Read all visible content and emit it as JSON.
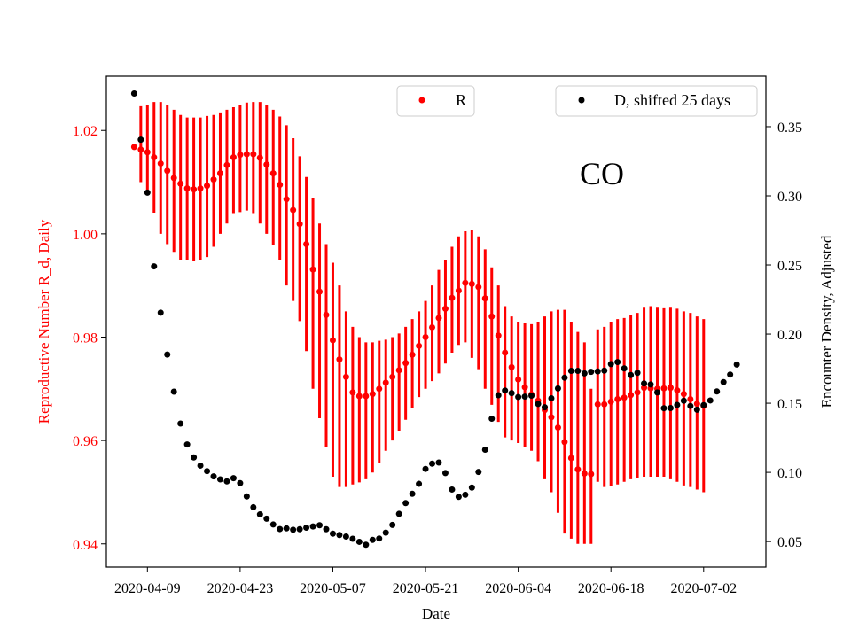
{
  "chart_data": {
    "type": "scatter",
    "annotation": "CO",
    "xlabel": "Date",
    "ylabel_left": "Reproductive Number R_d, Daily",
    "ylabel_right": "Encounter Density, Adjusted",
    "colors": {
      "left_axis": "#ff0000",
      "R": "#ff0000",
      "D": "#000000",
      "axis": "#000000"
    },
    "x_ticks": [
      "2020-04-09",
      "2020-04-23",
      "2020-05-07",
      "2020-05-21",
      "2020-06-04",
      "2020-06-18",
      "2020-07-02"
    ],
    "x_tick_day_index": [
      6,
      20,
      34,
      48,
      62,
      76,
      90
    ],
    "x_range_days": [
      -0.2,
      99.4
    ],
    "ylim_left": [
      0.9355,
      1.0305
    ],
    "ylim_right": [
      0.0315,
      0.3865
    ],
    "yticks_left": [
      "0.94",
      "0.96",
      "0.98",
      "1.00",
      "1.02"
    ],
    "yticks_left_values": [
      0.94,
      0.96,
      0.98,
      1.0,
      1.02
    ],
    "yticks_right": [
      "0.05",
      "0.10",
      "0.15",
      "0.20",
      "0.25",
      "0.30",
      "0.35"
    ],
    "yticks_right_values": [
      0.05,
      0.1,
      0.15,
      0.2,
      0.25,
      0.3,
      0.35
    ],
    "legend": {
      "R_label": "R",
      "D_label": "D, shifted 25 days",
      "R_position": "top-center",
      "D_position": "top-right"
    },
    "series": [
      {
        "name": "R",
        "start_day": 4,
        "values": [
          1.0168,
          1.0163,
          1.0158,
          1.0148,
          1.0136,
          1.0122,
          1.0108,
          1.0097,
          1.0088,
          1.0086,
          1.0088,
          1.0093,
          1.0105,
          1.0117,
          1.0133,
          1.0148,
          1.0153,
          1.0154,
          1.0154,
          1.0147,
          1.0134,
          1.0117,
          1.0095,
          1.0067,
          1.0046,
          1.0019,
          0.998,
          0.9931,
          0.9888,
          0.9843,
          0.9794,
          0.9757,
          0.9723,
          0.9693,
          0.9686,
          0.9686,
          0.969,
          0.97,
          0.9712,
          0.9723,
          0.9736,
          0.975,
          0.9766,
          0.9783,
          0.98,
          0.9819,
          0.9837,
          0.9855,
          0.9876,
          0.989,
          0.9905,
          0.9903,
          0.9897,
          0.9875,
          0.984,
          0.9803,
          0.977,
          0.9742,
          0.9718,
          0.9703,
          0.9689,
          0.9677,
          0.9659,
          0.9645,
          0.9625,
          0.9597,
          0.9566,
          0.9544,
          0.9536,
          0.9535,
          0.967,
          0.967,
          0.9675,
          0.968,
          0.9683,
          0.9688,
          0.9693,
          0.9702,
          0.9701,
          0.97,
          0.9701,
          0.9702,
          0.9697,
          0.969,
          0.968,
          0.9671,
          0.9667
        ],
        "errors_low": [
          1.0168,
          1.01,
          1.0075,
          1.0041,
          1.0,
          0.998,
          0.9965,
          0.995,
          0.995,
          0.9947,
          0.995,
          0.9955,
          0.9975,
          1.0,
          1.002,
          1.004,
          1.0042,
          1.0045,
          1.004,
          1.002,
          1.0,
          0.9978,
          0.995,
          0.99,
          0.987,
          0.9831,
          0.9773,
          0.97,
          0.9643,
          0.9588,
          0.953,
          0.951,
          0.951,
          0.9515,
          0.9519,
          0.9525,
          0.9538,
          0.9557,
          0.958,
          0.96,
          0.9619,
          0.964,
          0.9662,
          0.9684,
          0.97,
          0.9715,
          0.973,
          0.9749,
          0.977,
          0.9785,
          0.979,
          0.976,
          0.9738,
          0.97,
          0.9669,
          0.9636,
          0.9606,
          0.96,
          0.9595,
          0.9588,
          0.958,
          0.956,
          0.9525,
          0.95,
          0.946,
          0.942,
          0.941,
          0.94,
          0.94,
          0.94,
          0.952,
          0.951,
          0.9512,
          0.9515,
          0.952,
          0.9525,
          0.9528,
          0.953,
          0.953,
          0.953,
          0.953,
          0.9525,
          0.952,
          0.9513,
          0.951,
          0.9505,
          0.95
        ],
        "errors_high": [
          1.0168,
          1.0247,
          1.025,
          1.0255,
          1.0255,
          1.025,
          1.024,
          1.023,
          1.0225,
          1.0225,
          1.0225,
          1.0228,
          1.023,
          1.0235,
          1.024,
          1.0245,
          1.025,
          1.0254,
          1.0255,
          1.0255,
          1.025,
          1.024,
          1.0227,
          1.021,
          1.0185,
          1.015,
          1.011,
          1.007,
          1.002,
          0.998,
          0.9944,
          0.99,
          0.985,
          0.982,
          0.98,
          0.979,
          0.979,
          0.9793,
          0.9795,
          0.98,
          0.9807,
          0.982,
          0.9835,
          0.985,
          0.987,
          0.99,
          0.993,
          0.995,
          0.9975,
          0.9995,
          1.0005,
          1.0008,
          0.9995,
          0.997,
          0.9935,
          0.99,
          0.986,
          0.984,
          0.983,
          0.9828,
          0.9825,
          0.983,
          0.984,
          0.985,
          0.9853,
          0.9853,
          0.983,
          0.981,
          0.979,
          0.97,
          0.9815,
          0.982,
          0.983,
          0.9835,
          0.9837,
          0.9842,
          0.9847,
          0.9857,
          0.986,
          0.9857,
          0.9856,
          0.9857,
          0.9855,
          0.985,
          0.9847,
          0.984,
          0.9835
        ]
      },
      {
        "name": "D, shifted 25 days",
        "start_day": 4,
        "values": [
          0.374,
          0.3406,
          0.3023,
          0.249,
          0.2155,
          0.1852,
          0.1584,
          0.1353,
          0.1202,
          0.1108,
          0.1049,
          0.1009,
          0.0971,
          0.0949,
          0.0935,
          0.0958,
          0.0922,
          0.0826,
          0.0748,
          0.0696,
          0.0665,
          0.0623,
          0.059,
          0.0595,
          0.0585,
          0.0589,
          0.06,
          0.0609,
          0.0618,
          0.0589,
          0.0557,
          0.0547,
          0.0536,
          0.052,
          0.0498,
          0.0477,
          0.0512,
          0.0522,
          0.0564,
          0.062,
          0.07,
          0.0778,
          0.0845,
          0.0917,
          0.1025,
          0.1063,
          0.1071,
          0.0995,
          0.0876,
          0.0823,
          0.0838,
          0.089,
          0.1003,
          0.1164,
          0.1388,
          0.1558,
          0.1592,
          0.1573,
          0.1545,
          0.1548,
          0.1555,
          0.1495,
          0.1471,
          0.1536,
          0.1607,
          0.1685,
          0.1734,
          0.1734,
          0.1716,
          0.1727,
          0.173,
          0.1736,
          0.1783,
          0.1798,
          0.1752,
          0.1704,
          0.172,
          0.1643,
          0.1636,
          0.1578,
          0.1464,
          0.1465,
          0.1488,
          0.1518,
          0.148,
          0.1453,
          0.1486,
          0.152,
          0.1585,
          0.1653,
          0.1707,
          0.178
        ]
      }
    ]
  }
}
